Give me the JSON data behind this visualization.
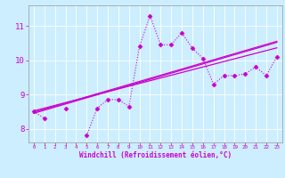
{
  "title": "",
  "xlabel": "Windchill (Refroidissement éolien,°C)",
  "ylabel": "",
  "bg_color": "#cceeff",
  "line_color": "#cc00cc",
  "grid_color": "#aadddd",
  "text_color": "#cc00cc",
  "label_color": "#cc00cc",
  "x_data": [
    0,
    1,
    2,
    3,
    4,
    5,
    6,
    7,
    8,
    9,
    10,
    11,
    12,
    13,
    14,
    15,
    16,
    17,
    18,
    19,
    20,
    21,
    22,
    23
  ],
  "y_main": [
    8.5,
    8.3,
    null,
    8.6,
    null,
    7.8,
    8.6,
    8.85,
    8.85,
    8.65,
    10.4,
    11.3,
    10.45,
    10.45,
    10.8,
    10.35,
    10.05,
    9.3,
    9.55,
    9.55,
    9.6,
    9.8,
    9.55,
    10.1
  ],
  "y_reg1": [
    8.45,
    8.54,
    8.63,
    8.72,
    8.81,
    8.9,
    8.99,
    9.08,
    9.17,
    9.26,
    9.35,
    9.44,
    9.53,
    9.62,
    9.71,
    9.8,
    9.89,
    9.98,
    10.07,
    10.16,
    10.25,
    10.34,
    10.43,
    10.52
  ],
  "y_reg2": [
    8.48,
    8.57,
    8.66,
    8.75,
    8.84,
    8.93,
    9.02,
    9.11,
    9.2,
    9.29,
    9.38,
    9.47,
    9.56,
    9.65,
    9.74,
    9.83,
    9.92,
    10.01,
    10.1,
    10.19,
    10.28,
    10.37,
    10.46,
    10.55
  ],
  "y_reg3": [
    8.52,
    8.6,
    8.68,
    8.76,
    8.84,
    8.92,
    9.0,
    9.08,
    9.16,
    9.24,
    9.32,
    9.4,
    9.48,
    9.56,
    9.64,
    9.72,
    9.8,
    9.88,
    9.96,
    10.04,
    10.12,
    10.2,
    10.28,
    10.36
  ],
  "ylim": [
    7.6,
    11.6
  ],
  "xlim": [
    -0.5,
    23.5
  ],
  "yticks": [
    8,
    9,
    10,
    11
  ],
  "xticks": [
    0,
    1,
    2,
    3,
    4,
    5,
    6,
    7,
    8,
    9,
    10,
    11,
    12,
    13,
    14,
    15,
    16,
    17,
    18,
    19,
    20,
    21,
    22,
    23
  ]
}
